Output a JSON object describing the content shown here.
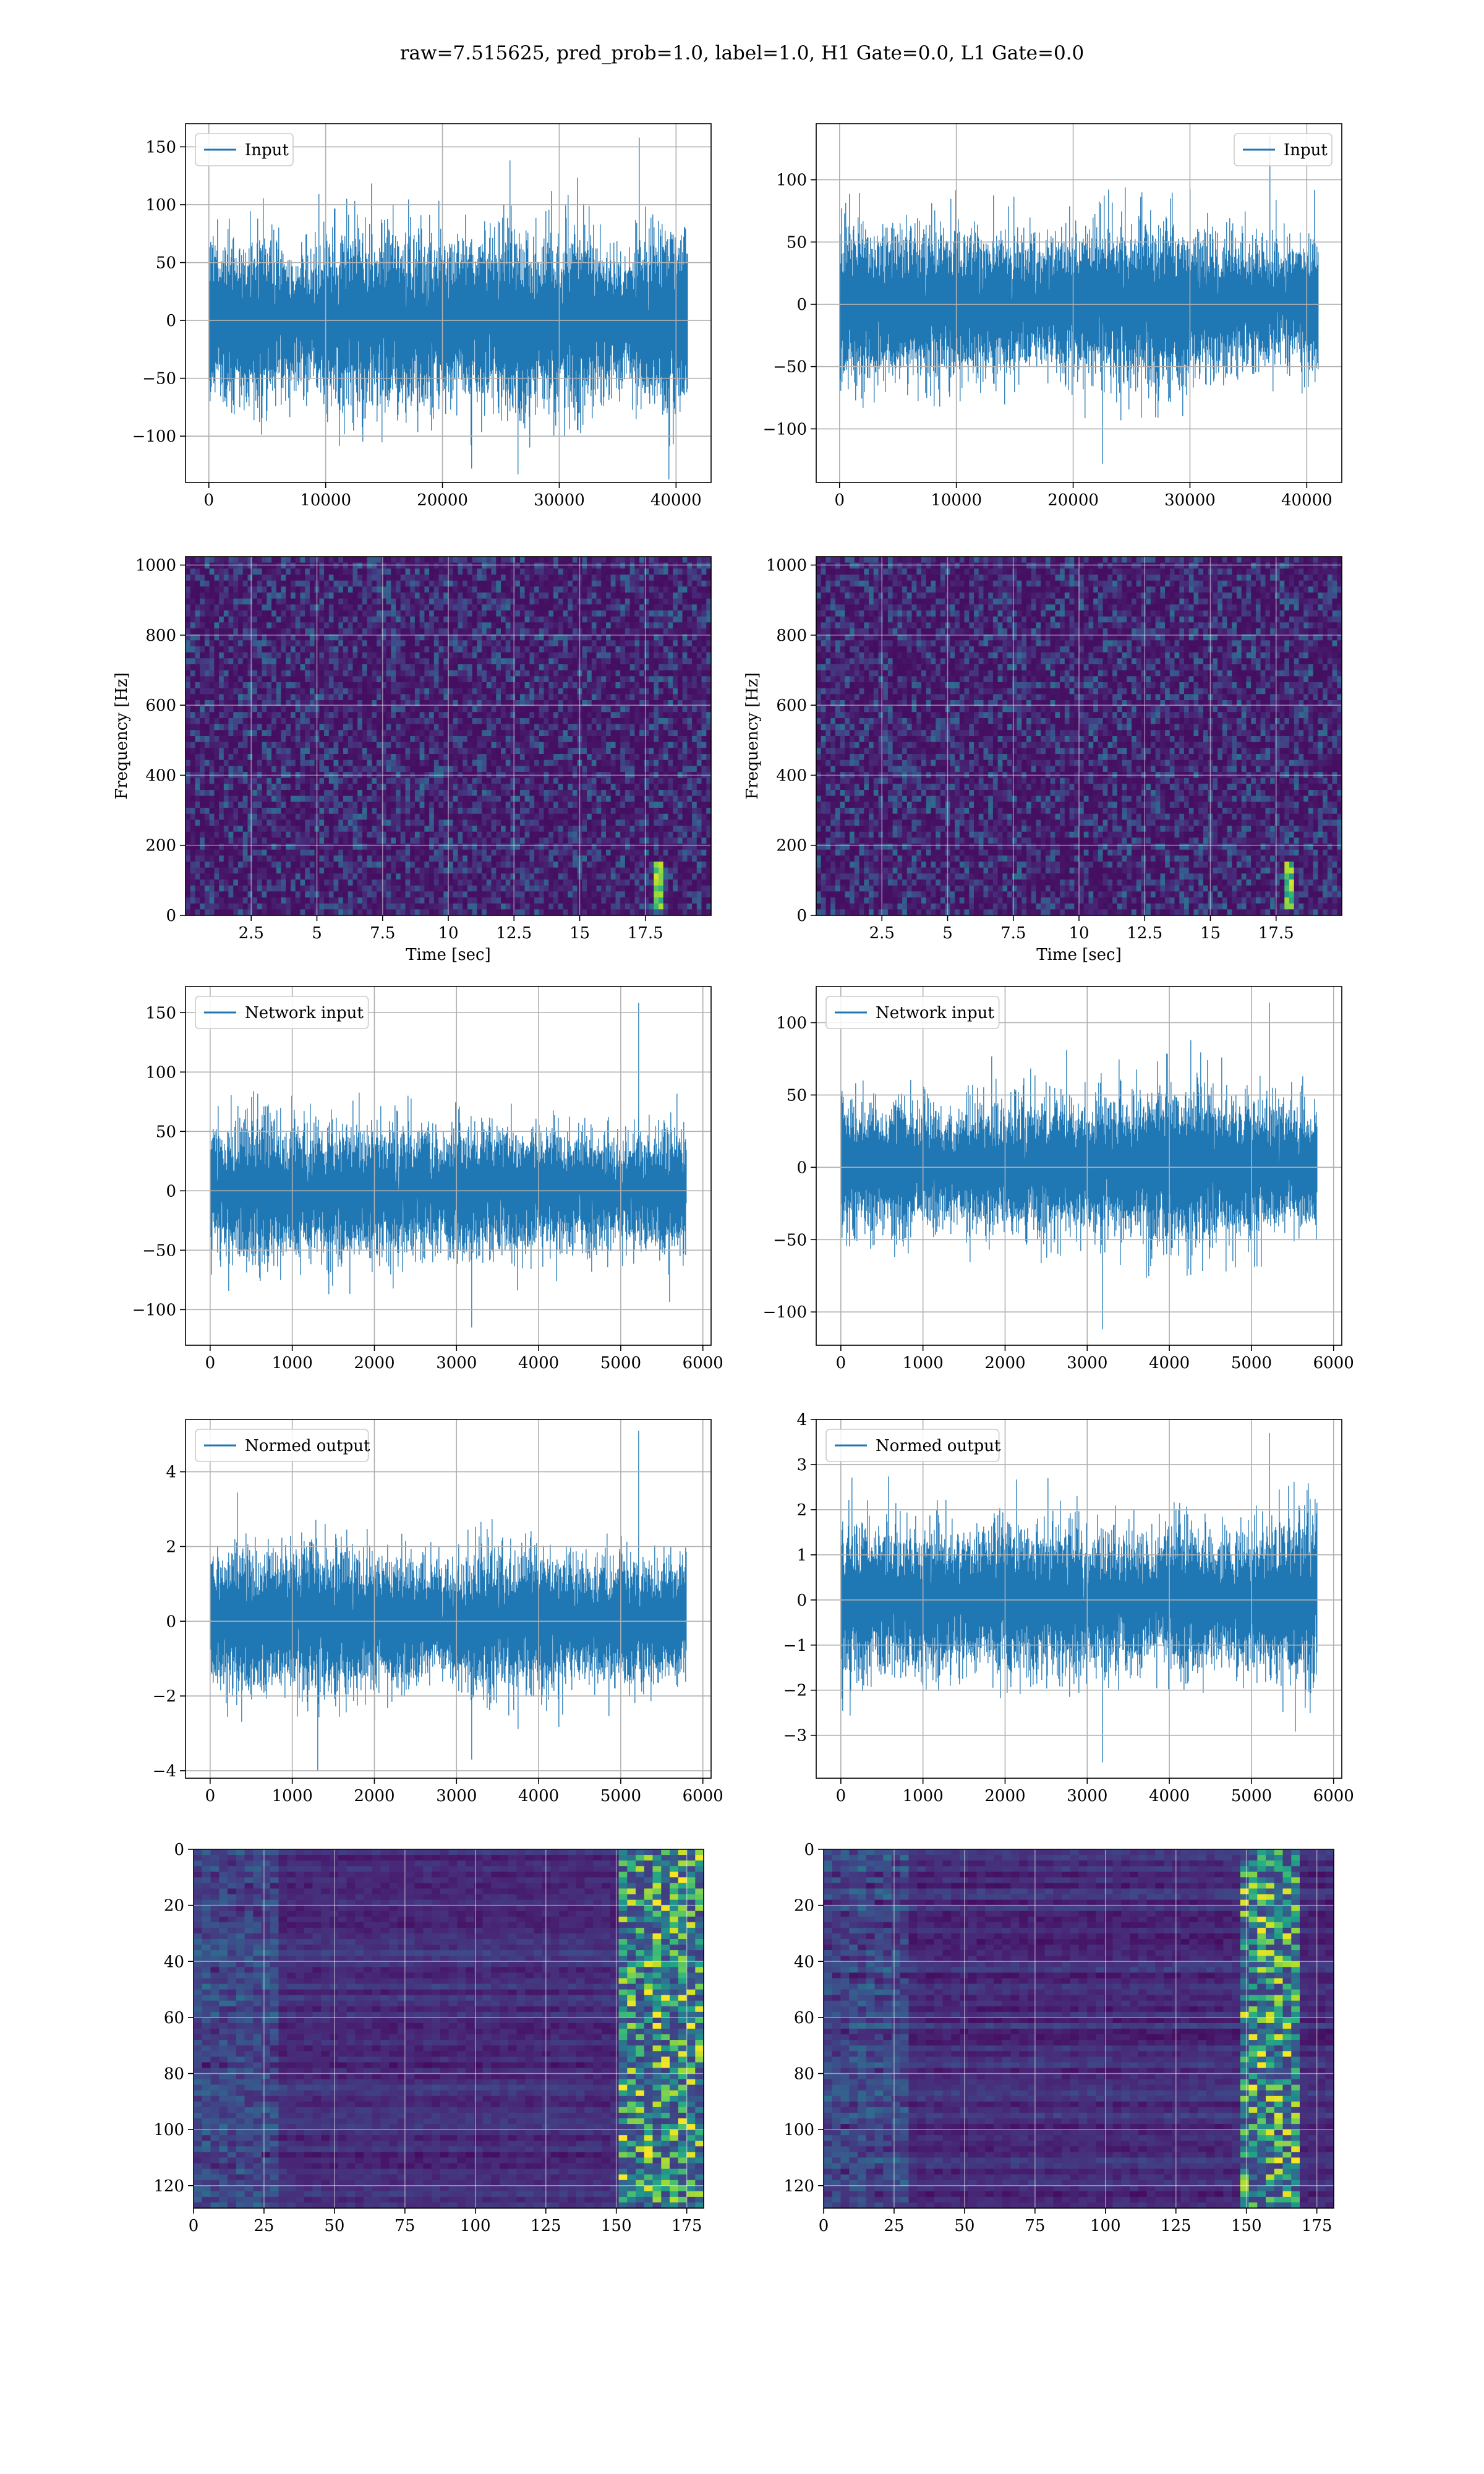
{
  "figure": {
    "title": "raw=7.515625, pred_prob=1.0, label=1.0, H1 Gate=0.0, L1 Gate=0.0"
  },
  "colors": {
    "line": "#1f77b4",
    "grid": "#b0b0b0",
    "viridis_low": "#440154",
    "viridis_high": "#fde725"
  },
  "chart_data": [
    {
      "id": "h1-input",
      "type": "line",
      "legend": {
        "label": "Input",
        "loc": "upper left"
      },
      "xlim": [
        -2000,
        43000
      ],
      "ylim": [
        -140,
        170
      ],
      "xticks": [
        0,
        10000,
        20000,
        30000,
        40000
      ],
      "yticks": [
        -100,
        -50,
        0,
        50,
        100,
        150
      ],
      "grid": true,
      "series": {
        "x_start": 0,
        "x_end": 40960,
        "n_samples": 40960,
        "envelope_typical": [
          -80,
          80
        ],
        "peak_max": 158,
        "peak_min": -128
      }
    },
    {
      "id": "l1-input",
      "type": "line",
      "legend": {
        "label": "Input",
        "loc": "upper right"
      },
      "xlim": [
        -2000,
        43000
      ],
      "ylim": [
        -143,
        145
      ],
      "xticks": [
        0,
        10000,
        20000,
        30000,
        40000
      ],
      "yticks": [
        -100,
        -50,
        0,
        50,
        100
      ],
      "grid": true,
      "series": {
        "x_start": 0,
        "x_end": 40960,
        "n_samples": 40960,
        "envelope_typical": [
          -70,
          70
        ],
        "peak_max": 136,
        "peak_min": -128
      }
    },
    {
      "id": "h1-spectrogram",
      "type": "heatmap",
      "xlabel": "Time [sec]",
      "ylabel": "Frequency [Hz]",
      "xlim": [
        0,
        20
      ],
      "ylim": [
        0,
        1024
      ],
      "xticks": [
        2.5,
        5.0,
        7.5,
        10.0,
        12.5,
        15.0,
        17.5
      ],
      "yticks": [
        0,
        200,
        400,
        600,
        800,
        1000
      ],
      "grid": true,
      "colormap": "viridis",
      "features": [
        {
          "time": 18.0,
          "freq_range": [
            20,
            160
          ],
          "intensity": "high"
        }
      ]
    },
    {
      "id": "l1-spectrogram",
      "type": "heatmap",
      "xlabel": "Time [sec]",
      "ylabel": "Frequency [Hz]",
      "xlim": [
        0,
        20
      ],
      "ylim": [
        0,
        1024
      ],
      "xticks": [
        2.5,
        5.0,
        7.5,
        10.0,
        12.5,
        15.0,
        17.5
      ],
      "yticks": [
        0,
        200,
        400,
        600,
        800,
        1000
      ],
      "grid": true,
      "colormap": "viridis",
      "features": [
        {
          "time": 18.0,
          "freq_range": [
            20,
            160
          ],
          "intensity": "high"
        }
      ]
    },
    {
      "id": "h1-network-input",
      "type": "line",
      "legend": {
        "label": "Network input",
        "loc": "upper left"
      },
      "xlim": [
        -300,
        6100
      ],
      "ylim": [
        -130,
        172
      ],
      "xticks": [
        0,
        1000,
        2000,
        3000,
        4000,
        5000,
        6000
      ],
      "yticks": [
        -100,
        -50,
        0,
        50,
        100,
        150
      ],
      "grid": true,
      "series": {
        "x_start": 0,
        "x_end": 5800,
        "n_samples": 5800,
        "envelope_typical": [
          -60,
          60
        ],
        "peak_max": 158,
        "peak_min": -115
      }
    },
    {
      "id": "l1-network-input",
      "type": "line",
      "legend": {
        "label": "Network input",
        "loc": "upper left"
      },
      "xlim": [
        -300,
        6100
      ],
      "ylim": [
        -123,
        125
      ],
      "xticks": [
        0,
        1000,
        2000,
        3000,
        4000,
        5000,
        6000
      ],
      "yticks": [
        -100,
        -50,
        0,
        50,
        100
      ],
      "grid": true,
      "series": {
        "x_start": 0,
        "x_end": 5800,
        "n_samples": 5800,
        "envelope_typical": [
          -55,
          55
        ],
        "peak_max": 114,
        "peak_min": -112
      }
    },
    {
      "id": "h1-normed-output",
      "type": "line",
      "legend": {
        "label": "Normed output",
        "loc": "upper left"
      },
      "xlim": [
        -300,
        6100
      ],
      "ylim": [
        -4.2,
        5.4
      ],
      "xticks": [
        0,
        1000,
        2000,
        3000,
        4000,
        5000,
        6000
      ],
      "yticks": [
        -4,
        -2,
        0,
        2,
        4
      ],
      "grid": true,
      "series": {
        "x_start": 0,
        "x_end": 5800,
        "n_samples": 5800,
        "envelope_typical": [
          -2,
          2
        ],
        "peak_max": 5.1,
        "peak_min": -3.7
      }
    },
    {
      "id": "l1-normed-output",
      "type": "line",
      "legend": {
        "label": "Normed output",
        "loc": "upper left"
      },
      "xlim": [
        -300,
        6100
      ],
      "ylim": [
        -3.95,
        4.0
      ],
      "xticks": [
        0,
        1000,
        2000,
        3000,
        4000,
        5000,
        6000
      ],
      "yticks": [
        -3,
        -2,
        -1,
        0,
        1,
        2,
        3,
        4
      ],
      "grid": true,
      "series": {
        "x_start": 0,
        "x_end": 5800,
        "n_samples": 5800,
        "envelope_typical": [
          -1.8,
          1.8
        ],
        "peak_max": 3.7,
        "peak_min": -3.6
      }
    },
    {
      "id": "h1-feature-map",
      "type": "heatmap",
      "xlim": [
        0,
        181
      ],
      "ylim": [
        128,
        0
      ],
      "xticks": [
        0,
        25,
        50,
        75,
        100,
        125,
        150,
        175
      ],
      "yticks": [
        0,
        20,
        40,
        60,
        80,
        100,
        120
      ],
      "grid": true,
      "colormap": "viridis",
      "features": [
        {
          "x_range": [
            150,
            181
          ],
          "intensity": "high"
        }
      ]
    },
    {
      "id": "l1-feature-map",
      "type": "heatmap",
      "xlim": [
        0,
        181
      ],
      "ylim": [
        128,
        0
      ],
      "xticks": [
        0,
        25,
        50,
        75,
        100,
        125,
        150,
        175
      ],
      "yticks": [
        0,
        20,
        40,
        60,
        80,
        100,
        120
      ],
      "grid": true,
      "colormap": "viridis",
      "features": [
        {
          "x_range": [
            148,
            170
          ],
          "intensity": "high"
        }
      ]
    }
  ]
}
